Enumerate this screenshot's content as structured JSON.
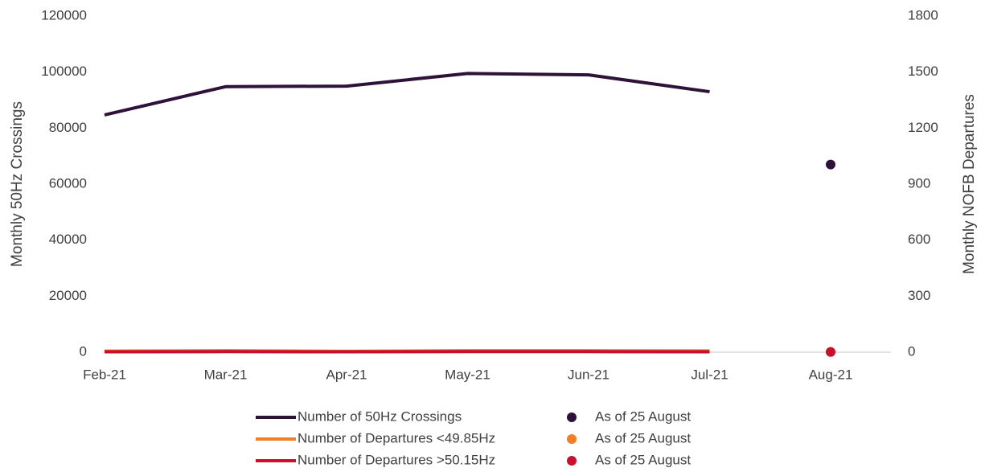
{
  "chart_data": {
    "type": "line",
    "categories": [
      "Feb-21",
      "Mar-21",
      "Apr-21",
      "May-21",
      "Jun-21",
      "Jul-21",
      "Aug-21"
    ],
    "series": [
      {
        "name": "Number of 50Hz Crossings",
        "color": "#2e1239",
        "style": "line",
        "axis": "y",
        "values": [
          84700,
          94800,
          95000,
          99500,
          99000,
          93000,
          null
        ]
      },
      {
        "name": "As of 25 August",
        "color": "#2e1239",
        "style": "marker",
        "axis": "y",
        "values": [
          null,
          null,
          null,
          null,
          null,
          null,
          67000
        ]
      },
      {
        "name": "Number of Departures <49.85Hz",
        "color": "#f07f25",
        "style": "line",
        "axis": "y2",
        "values": [
          6,
          8,
          5,
          8,
          8,
          7,
          null
        ]
      },
      {
        "name": "As of 25 August",
        "color": "#f07f25",
        "style": "marker",
        "axis": "y2",
        "values": [
          null,
          null,
          null,
          null,
          null,
          null,
          2
        ]
      },
      {
        "name": "Number of Departures >50.15Hz",
        "color": "#c8102e",
        "style": "line",
        "axis": "y2",
        "values": [
          2,
          3,
          2,
          3,
          3,
          2,
          null
        ]
      },
      {
        "name": "As of 25 August",
        "color": "#c8102e",
        "style": "marker",
        "axis": "y2",
        "values": [
          null,
          null,
          null,
          null,
          null,
          null,
          1
        ]
      }
    ],
    "ylabel": "Monthly 50Hz Crossings",
    "y2label": "Monthly NOFB Departures",
    "ylim": [
      0,
      120000
    ],
    "yticks": [
      0,
      20000,
      40000,
      60000,
      80000,
      100000,
      120000
    ],
    "y2lim": [
      0,
      1800
    ],
    "y2ticks": [
      0,
      300,
      600,
      900,
      1200,
      1500,
      1800
    ],
    "grid": false
  }
}
